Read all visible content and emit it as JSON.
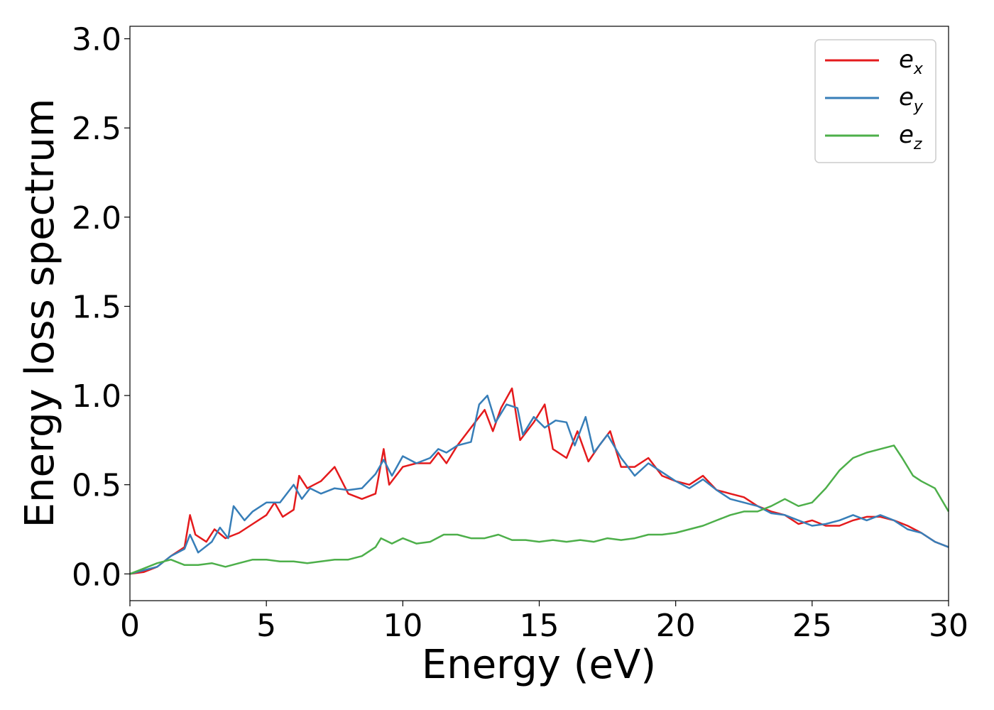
{
  "chart_data": {
    "type": "line",
    "title": "",
    "xlabel": "Energy (eV)",
    "ylabel": "Energy loss spectrum",
    "xlim": [
      0,
      30
    ],
    "ylim": [
      -0.15,
      3.07
    ],
    "xticks": [
      0,
      5,
      10,
      15,
      20,
      25,
      30
    ],
    "yticks": [
      0.0,
      0.5,
      1.0,
      1.5,
      2.0,
      2.5,
      3.0
    ],
    "xtick_labels": [
      "0",
      "5",
      "10",
      "15",
      "20",
      "25",
      "30"
    ],
    "ytick_labels": [
      "0.0",
      "0.5",
      "1.0",
      "1.5",
      "2.0",
      "2.5",
      "3.0"
    ],
    "grid": false,
    "legend_position": "top-right",
    "series": [
      {
        "name": "e_x",
        "label_main": "e",
        "label_sub": "x",
        "color": "#e41a1c",
        "points": [
          [
            0,
            0
          ],
          [
            0.5,
            0.01
          ],
          [
            1,
            0.04
          ],
          [
            1.5,
            0.1
          ],
          [
            2,
            0.15
          ],
          [
            2.2,
            0.33
          ],
          [
            2.4,
            0.22
          ],
          [
            2.8,
            0.18
          ],
          [
            3.1,
            0.25
          ],
          [
            3.5,
            0.2
          ],
          [
            4,
            0.23
          ],
          [
            4.5,
            0.28
          ],
          [
            5,
            0.33
          ],
          [
            5.3,
            0.4
          ],
          [
            5.6,
            0.32
          ],
          [
            6,
            0.36
          ],
          [
            6.2,
            0.55
          ],
          [
            6.5,
            0.48
          ],
          [
            7,
            0.52
          ],
          [
            7.5,
            0.6
          ],
          [
            8,
            0.45
          ],
          [
            8.5,
            0.42
          ],
          [
            9,
            0.45
          ],
          [
            9.3,
            0.7
          ],
          [
            9.5,
            0.5
          ],
          [
            10,
            0.6
          ],
          [
            10.5,
            0.62
          ],
          [
            11,
            0.62
          ],
          [
            11.3,
            0.68
          ],
          [
            11.6,
            0.62
          ],
          [
            12,
            0.72
          ],
          [
            12.5,
            0.82
          ],
          [
            13,
            0.92
          ],
          [
            13.3,
            0.8
          ],
          [
            13.6,
            0.93
          ],
          [
            14,
            1.04
          ],
          [
            14.3,
            0.75
          ],
          [
            14.8,
            0.85
          ],
          [
            15.2,
            0.95
          ],
          [
            15.5,
            0.7
          ],
          [
            16,
            0.65
          ],
          [
            16.4,
            0.8
          ],
          [
            16.8,
            0.63
          ],
          [
            17.2,
            0.72
          ],
          [
            17.6,
            0.8
          ],
          [
            18,
            0.6
          ],
          [
            18.5,
            0.6
          ],
          [
            19,
            0.65
          ],
          [
            19.5,
            0.55
          ],
          [
            20,
            0.52
          ],
          [
            20.5,
            0.5
          ],
          [
            21,
            0.55
          ],
          [
            21.5,
            0.47
          ],
          [
            22,
            0.45
          ],
          [
            22.5,
            0.43
          ],
          [
            23,
            0.38
          ],
          [
            23.5,
            0.35
          ],
          [
            24,
            0.33
          ],
          [
            24.5,
            0.28
          ],
          [
            25,
            0.3
          ],
          [
            25.5,
            0.27
          ],
          [
            26,
            0.27
          ],
          [
            26.5,
            0.3
          ],
          [
            27,
            0.32
          ],
          [
            27.5,
            0.32
          ],
          [
            28,
            0.3
          ],
          [
            28.5,
            0.27
          ],
          [
            29,
            0.23
          ],
          [
            29.5,
            0.18
          ],
          [
            30,
            0.15
          ]
        ]
      },
      {
        "name": "e_y",
        "label_main": "e",
        "label_sub": "y",
        "color": "#377eb8",
        "points": [
          [
            0,
            0
          ],
          [
            0.5,
            0.02
          ],
          [
            1,
            0.04
          ],
          [
            1.5,
            0.1
          ],
          [
            2,
            0.14
          ],
          [
            2.2,
            0.22
          ],
          [
            2.5,
            0.12
          ],
          [
            3,
            0.18
          ],
          [
            3.3,
            0.26
          ],
          [
            3.6,
            0.2
          ],
          [
            3.8,
            0.38
          ],
          [
            4.2,
            0.3
          ],
          [
            4.5,
            0.35
          ],
          [
            5,
            0.4
          ],
          [
            5.5,
            0.4
          ],
          [
            6,
            0.5
          ],
          [
            6.3,
            0.42
          ],
          [
            6.6,
            0.48
          ],
          [
            7,
            0.45
          ],
          [
            7.5,
            0.48
          ],
          [
            8,
            0.47
          ],
          [
            8.5,
            0.48
          ],
          [
            9,
            0.56
          ],
          [
            9.3,
            0.64
          ],
          [
            9.6,
            0.55
          ],
          [
            10,
            0.66
          ],
          [
            10.5,
            0.62
          ],
          [
            11,
            0.65
          ],
          [
            11.3,
            0.7
          ],
          [
            11.6,
            0.68
          ],
          [
            12,
            0.72
          ],
          [
            12.5,
            0.74
          ],
          [
            12.8,
            0.95
          ],
          [
            13.1,
            1.0
          ],
          [
            13.4,
            0.85
          ],
          [
            13.8,
            0.95
          ],
          [
            14.2,
            0.93
          ],
          [
            14.4,
            0.78
          ],
          [
            14.8,
            0.88
          ],
          [
            15.2,
            0.82
          ],
          [
            15.6,
            0.86
          ],
          [
            16,
            0.85
          ],
          [
            16.3,
            0.72
          ],
          [
            16.7,
            0.88
          ],
          [
            17,
            0.68
          ],
          [
            17.5,
            0.78
          ],
          [
            18,
            0.65
          ],
          [
            18.5,
            0.55
          ],
          [
            19,
            0.62
          ],
          [
            19.5,
            0.57
          ],
          [
            20,
            0.52
          ],
          [
            20.5,
            0.48
          ],
          [
            21,
            0.53
          ],
          [
            21.5,
            0.47
          ],
          [
            22,
            0.42
          ],
          [
            22.5,
            0.4
          ],
          [
            23,
            0.38
          ],
          [
            23.5,
            0.34
          ],
          [
            24,
            0.33
          ],
          [
            24.5,
            0.3
          ],
          [
            25,
            0.27
          ],
          [
            25.5,
            0.28
          ],
          [
            26,
            0.3
          ],
          [
            26.5,
            0.33
          ],
          [
            27,
            0.3
          ],
          [
            27.5,
            0.33
          ],
          [
            28,
            0.3
          ],
          [
            28.5,
            0.25
          ],
          [
            29,
            0.23
          ],
          [
            29.5,
            0.18
          ],
          [
            30,
            0.15
          ]
        ]
      },
      {
        "name": "e_z",
        "label_main": "e",
        "label_sub": "z",
        "color": "#4daf4a",
        "points": [
          [
            0,
            0
          ],
          [
            0.5,
            0.03
          ],
          [
            1,
            0.06
          ],
          [
            1.5,
            0.08
          ],
          [
            2,
            0.05
          ],
          [
            2.5,
            0.05
          ],
          [
            3,
            0.06
          ],
          [
            3.5,
            0.04
          ],
          [
            4,
            0.06
          ],
          [
            4.5,
            0.08
          ],
          [
            5,
            0.08
          ],
          [
            5.5,
            0.07
          ],
          [
            6,
            0.07
          ],
          [
            6.5,
            0.06
          ],
          [
            7,
            0.07
          ],
          [
            7.5,
            0.08
          ],
          [
            8,
            0.08
          ],
          [
            8.5,
            0.1
          ],
          [
            9,
            0.15
          ],
          [
            9.2,
            0.2
          ],
          [
            9.6,
            0.17
          ],
          [
            10,
            0.2
          ],
          [
            10.5,
            0.17
          ],
          [
            11,
            0.18
          ],
          [
            11.5,
            0.22
          ],
          [
            12,
            0.22
          ],
          [
            12.5,
            0.2
          ],
          [
            13,
            0.2
          ],
          [
            13.5,
            0.22
          ],
          [
            14,
            0.19
          ],
          [
            14.5,
            0.19
          ],
          [
            15,
            0.18
          ],
          [
            15.5,
            0.19
          ],
          [
            16,
            0.18
          ],
          [
            16.5,
            0.19
          ],
          [
            17,
            0.18
          ],
          [
            17.5,
            0.2
          ],
          [
            18,
            0.19
          ],
          [
            18.5,
            0.2
          ],
          [
            19,
            0.22
          ],
          [
            19.5,
            0.22
          ],
          [
            20,
            0.23
          ],
          [
            20.5,
            0.25
          ],
          [
            21,
            0.27
          ],
          [
            21.5,
            0.3
          ],
          [
            22,
            0.33
          ],
          [
            22.5,
            0.35
          ],
          [
            23,
            0.35
          ],
          [
            23.5,
            0.38
          ],
          [
            24,
            0.42
          ],
          [
            24.5,
            0.38
          ],
          [
            25,
            0.4
          ],
          [
            25.5,
            0.48
          ],
          [
            26,
            0.58
          ],
          [
            26.5,
            0.65
          ],
          [
            27,
            0.68
          ],
          [
            27.5,
            0.7
          ],
          [
            28,
            0.72
          ],
          [
            28.3,
            0.65
          ],
          [
            28.7,
            0.55
          ],
          [
            29,
            0.52
          ],
          [
            29.5,
            0.48
          ],
          [
            30,
            0.35
          ]
        ]
      }
    ]
  }
}
